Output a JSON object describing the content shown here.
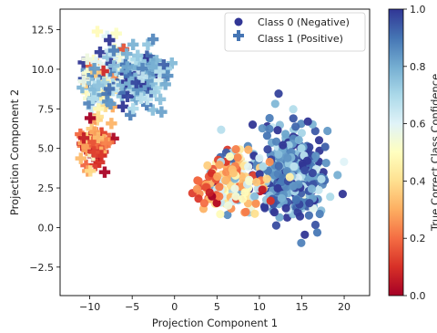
{
  "chart_data": {
    "type": "scatter",
    "xlabel": "Projection Component 1",
    "ylabel": "Projection Component 2",
    "xlim": [
      -13.5,
      23
    ],
    "ylim": [
      -4.3,
      13.8
    ],
    "xticks": [
      -10,
      -5,
      0,
      5,
      10,
      15,
      20
    ],
    "yticks": [
      -2.5,
      0.0,
      2.5,
      5.0,
      7.5,
      10.0,
      12.5
    ],
    "xtick_labels": [
      "−10",
      "−5",
      "0",
      "5",
      "10",
      "15",
      "20"
    ],
    "ytick_labels": [
      "−2.5",
      "0.0",
      "2.5",
      "5.0",
      "7.5",
      "10.0",
      "12.5"
    ],
    "grid": false,
    "legend_position": "top-right",
    "series": [
      {
        "name": "Class 0 (Negative)",
        "marker": "circle",
        "clusters": [
          {
            "center": [
              14,
              3.5
            ],
            "spread": [
              3.6,
              2.8
            ],
            "count": 380,
            "confidence_mean": 0.88,
            "confidence_sd": 0.13
          },
          {
            "center": [
              7.5,
              3.0
            ],
            "spread": [
              3.0,
              2.0
            ],
            "count": 150,
            "confidence_mean": 0.45,
            "confidence_sd": 0.22
          },
          {
            "center": [
              4,
              2.5
            ],
            "spread": [
              1.5,
              1.0
            ],
            "count": 30,
            "confidence_mean": 0.18,
            "confidence_sd": 0.1
          }
        ]
      },
      {
        "name": "Class 1 (Positive)",
        "marker": "plus",
        "clusters": [
          {
            "center": [
              -8.5,
              9.5
            ],
            "spread": [
              2.2,
              1.8
            ],
            "count": 120,
            "confidence_mean": 0.62,
            "confidence_sd": 0.2
          },
          {
            "center": [
              -4,
              9.5
            ],
            "spread": [
              2.6,
              1.8
            ],
            "count": 120,
            "confidence_mean": 0.85,
            "confidence_sd": 0.12
          },
          {
            "center": [
              -9.5,
              5.5
            ],
            "spread": [
              1.6,
              1.8
            ],
            "count": 60,
            "confidence_mean": 0.2,
            "confidence_sd": 0.12
          }
        ]
      }
    ],
    "colorbar": {
      "label": "True Correct Class Confidence",
      "range": [
        0.0,
        1.0
      ],
      "ticks": [
        0.0,
        0.2,
        0.4,
        0.6,
        0.8,
        1.0
      ],
      "tick_labels": [
        "0.0",
        "0.2",
        "0.4",
        "0.6",
        "0.8",
        "1.0"
      ],
      "colormap": "RdYlBu",
      "colormap_stops": [
        "#a50026",
        "#d73027",
        "#f46d43",
        "#fdae61",
        "#fee090",
        "#ffffbf",
        "#e0f3f8",
        "#abd9e9",
        "#74add1",
        "#4575b4",
        "#313695"
      ]
    }
  }
}
